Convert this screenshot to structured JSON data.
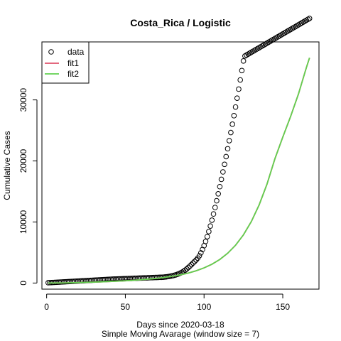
{
  "chart_data": {
    "type": "scatter",
    "title": "Costa_Rica / Logistic",
    "xlabel": "Days since 2020-03-18",
    "xlabel2": "Simple Moving Avarage (window size = 7)",
    "ylabel": "Cumulative Cases",
    "xlim": [
      -3,
      173
    ],
    "ylim": [
      -1000,
      39500
    ],
    "x_ticks": [
      0,
      50,
      100,
      150
    ],
    "y_ticks": [
      0,
      10000,
      20000,
      30000
    ],
    "legend": {
      "position": "top-left",
      "entries": [
        "data",
        "fit1",
        "fit2"
      ]
    },
    "colors": {
      "data": "#000000",
      "fit1": "#DF536B",
      "fit2": "#61D04F"
    },
    "series": [
      {
        "name": "data",
        "kind": "points",
        "x": [
          1,
          2,
          3,
          4,
          5,
          6,
          7,
          8,
          9,
          10,
          11,
          12,
          13,
          14,
          15,
          16,
          17,
          18,
          19,
          20,
          21,
          22,
          23,
          24,
          25,
          26,
          27,
          28,
          29,
          30,
          31,
          32,
          33,
          34,
          35,
          36,
          37,
          38,
          39,
          40,
          41,
          42,
          43,
          44,
          45,
          46,
          47,
          48,
          49,
          50,
          51,
          52,
          53,
          54,
          55,
          56,
          57,
          58,
          59,
          60,
          61,
          62,
          63,
          64,
          65,
          66,
          67,
          68,
          69,
          70,
          71,
          72,
          73,
          74,
          75,
          76,
          77,
          78,
          79,
          80,
          81,
          82,
          83,
          84,
          85,
          86,
          87,
          88,
          89,
          90,
          91,
          92,
          93,
          94,
          95,
          96,
          97,
          98,
          99,
          100,
          101,
          102,
          103,
          104,
          105,
          106,
          107,
          108,
          109,
          110,
          111,
          112,
          113,
          114,
          115,
          116,
          117,
          118,
          119,
          120,
          121,
          122,
          123,
          124,
          125,
          126,
          127,
          128,
          129,
          130,
          131,
          132,
          133,
          134,
          135,
          136,
          137,
          138,
          139,
          140,
          141,
          142,
          143,
          144,
          145,
          146,
          147,
          148,
          149,
          150,
          151,
          152,
          153,
          154,
          155,
          156,
          157,
          158,
          159,
          160,
          161,
          162,
          163,
          164,
          165,
          166,
          167
        ],
        "y": [
          50,
          63,
          78,
          92,
          107,
          121,
          136,
          150,
          165,
          179,
          194,
          208,
          223,
          237,
          252,
          266,
          281,
          295,
          310,
          324,
          339,
          353,
          368,
          382,
          397,
          411,
          426,
          440,
          455,
          469,
          484,
          498,
          513,
          527,
          542,
          556,
          571,
          585,
          600,
          614,
          627,
          637,
          647,
          657,
          667,
          677,
          687,
          697,
          707,
          717,
          727,
          737,
          747,
          757,
          767,
          777,
          787,
          797,
          807,
          817,
          827,
          837,
          847,
          857,
          867,
          877,
          887,
          897,
          907,
          917,
          927,
          937,
          947,
          957,
          983,
          1016,
          1052,
          1094,
          1141,
          1196,
          1259,
          1332,
          1418,
          1519,
          1636,
          1772,
          1928,
          2107,
          2309,
          2538,
          2779,
          3029,
          3280,
          3530,
          3780,
          4080,
          4468,
          4938,
          5489,
          6118,
          6821,
          7594,
          8434,
          9337,
          10298,
          11312,
          12373,
          13477,
          14617,
          15788,
          16985,
          18204,
          19446,
          20710,
          22000,
          23314,
          24654,
          26020,
          27413,
          28834,
          30284,
          31763,
          33271,
          34809,
          36378,
          37200,
          37350,
          37500,
          37650,
          37800,
          37950,
          38100,
          38250,
          38400,
          38550,
          38700,
          38850,
          39000,
          39150,
          39300,
          39450,
          39600,
          39750,
          39900,
          40050,
          40200,
          40350,
          40500,
          40650,
          40800,
          40950,
          41100,
          41250,
          41400,
          41550,
          41700,
          41850,
          42000,
          42150,
          42300,
          42450,
          42600,
          42750,
          42900,
          43050,
          43200,
          43350
        ]
      },
      {
        "name": "fit1",
        "kind": "line",
        "x": [
          1,
          5,
          10,
          15,
          20,
          25,
          30,
          35,
          40,
          45,
          50,
          55,
          60,
          65,
          70,
          75,
          80,
          85,
          90,
          95,
          100,
          105,
          110,
          115,
          120,
          125,
          130,
          135,
          140,
          145,
          150,
          155,
          160,
          165,
          167
        ],
        "y": [
          5,
          10,
          20,
          40,
          70,
          110,
          150,
          200,
          250,
          310,
          370,
          450,
          540,
          650,
          780,
          930,
          1120,
          1350,
          1640,
          2010,
          2480,
          3080,
          3860,
          4880,
          6190,
          7890,
          10060,
          12810,
          16220,
          20350,
          23900,
          27300,
          31000,
          35300,
          36900
        ]
      },
      {
        "name": "fit2",
        "kind": "line",
        "x": [
          1,
          5,
          10,
          15,
          20,
          25,
          30,
          35,
          40,
          45,
          50,
          55,
          60,
          65,
          70,
          75,
          80,
          85,
          90,
          95,
          100,
          105,
          110,
          115,
          120,
          125,
          130,
          135,
          140,
          145,
          150,
          155,
          160,
          165,
          167
        ],
        "y": [
          5,
          10,
          20,
          40,
          70,
          110,
          150,
          200,
          250,
          310,
          370,
          450,
          540,
          650,
          780,
          930,
          1120,
          1350,
          1640,
          2010,
          2480,
          3080,
          3860,
          4880,
          6190,
          7890,
          10060,
          12810,
          16220,
          20350,
          23900,
          27300,
          31000,
          35300,
          36900
        ]
      }
    ]
  }
}
